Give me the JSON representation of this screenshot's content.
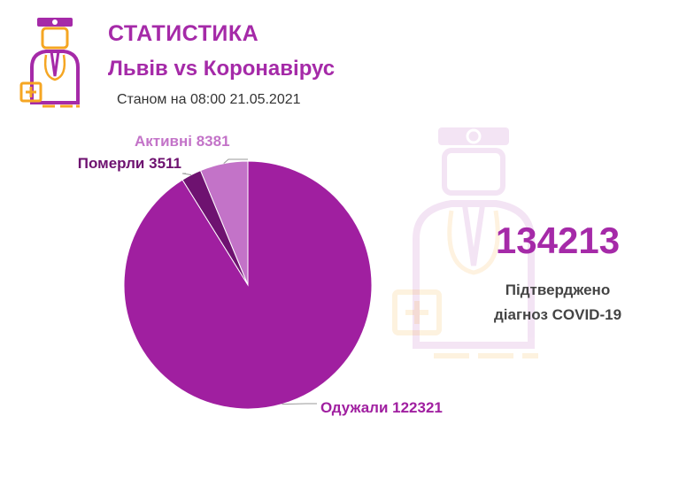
{
  "header": {
    "title": "СТАТИСТИКА",
    "subtitle": "Львів vs Коронавірус",
    "date_text": "Станом на 08:00 21.05.2021"
  },
  "summary": {
    "total": "134213",
    "caption_line1": "Підтверджено",
    "caption_line2": "діагноз COVID-19"
  },
  "icons": {
    "logo": "doctor-icon",
    "watermark": "doctor-watermark-icon"
  },
  "colors": {
    "brand": "#a52aa8",
    "recovered": "#a01fa0",
    "died": "#6e1270",
    "active": "#c373c8",
    "accent_orange": "#f5a623"
  },
  "chart_data": {
    "type": "pie",
    "title": "",
    "series": [
      {
        "name": "Активні",
        "value": 8381,
        "label": "Активні 8381",
        "color": "#c373c8"
      },
      {
        "name": "Померли",
        "value": 3511,
        "label": "Померли 3511",
        "color": "#6e1270"
      },
      {
        "name": "Одужали",
        "value": 122321,
        "label": "Одужали 122321",
        "color": "#a01fa0"
      }
    ]
  }
}
